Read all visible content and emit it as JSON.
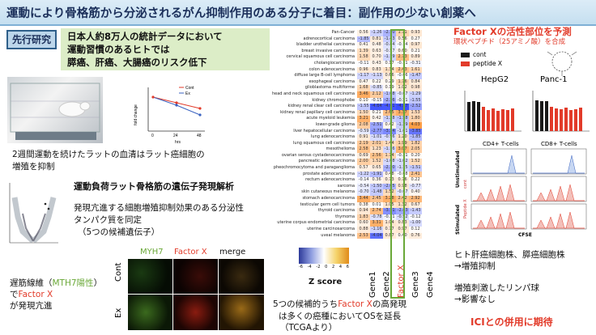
{
  "title": "運動により骨格筋から分泌されるがん抑制作用のある分子に着目：副作用の少ない創薬へ",
  "prior_label": "先行研究",
  "prior_lines": [
    "日本人約8万人の統計データにおいて",
    "運動習慣のあるヒトでは",
    "膵癌、肝癌、大腸癌のリスク低下"
  ],
  "plot": {
    "ylabel": "fold change",
    "legend": [
      "Cont",
      "Ex"
    ],
    "xticks": [
      "0",
      "24",
      "48"
    ],
    "xlabel": "hrs"
  },
  "rat_caption": [
    "2週間運動を続けたラットの血清はラット癌細胞の",
    "増殖を抑制"
  ],
  "analysis_title": "運動負荷ラット骨格筋の遺伝子発現解析",
  "analysis_lines": [
    "発現亢進する細胞増殖抑制効果のある分泌性",
    "タンパク質を同定",
    "（5つの候補遺伝子）"
  ],
  "muscle_caption": {
    "l1a": "遅筋線維（",
    "l1b": "MTH7陽性",
    "l1c": "）",
    "l2a": "で",
    "l2b": "Factor X",
    "l3": "が発現亢進"
  },
  "micro": {
    "cols": [
      "MYH7",
      "Factor X",
      "merge"
    ],
    "rows": [
      "Cont",
      "Ex"
    ]
  },
  "heatmap": {
    "rows": [
      {
        "name": "Pan-Cancer",
        "v": [
          "0.56",
          "-1.26",
          "-2.10",
          "1.71",
          "0.93"
        ]
      },
      {
        "name": "adrenocortical carcinoma",
        "v": [
          "-1.85",
          "0.81",
          "-1.43",
          "0.56",
          "0.27"
        ]
      },
      {
        "name": "bladder urothelial carcinoma",
        "v": [
          "0.41",
          "0.48",
          "-0.84",
          "-0.14",
          "0.97"
        ]
      },
      {
        "name": "breast invasive carcinoma",
        "v": [
          "1.39",
          "0.63",
          "-0.57",
          "0.60",
          "0.21"
        ]
      },
      {
        "name": "cervical squamous cell carcinoma",
        "v": [
          "1.58",
          "0.70",
          "-1.19",
          "2.73",
          "0.89"
        ]
      },
      {
        "name": "cholangiocarcinoma",
        "v": [
          "-0.11",
          "0.43",
          "0.17",
          "-0.11",
          "-0.31"
        ]
      },
      {
        "name": "colon adenocarcinoma",
        "v": [
          "0.96",
          "0.83",
          "1.34",
          "2.43",
          "1.61"
        ]
      },
      {
        "name": "diffuse large B-cell lymphoma",
        "v": [
          "-1.17",
          "-1.13",
          "0.66",
          "-0.06",
          "-1.47"
        ]
      },
      {
        "name": "esophageal carcinoma",
        "v": [
          "0.47",
          "0.22",
          "0.29",
          "1.76",
          "0.84"
        ]
      },
      {
        "name": "glioblastoma multiforme",
        "v": [
          "1.68",
          "-0.85",
          "0.19",
          "1.02",
          "0.98"
        ]
      },
      {
        "name": "head and neck squamous cell carcinoma",
        "v": [
          "3.46",
          "2.12",
          "-1.68",
          "-0.67",
          "-1.29"
        ]
      },
      {
        "name": "kidney chromophobe",
        "v": [
          "0.10",
          "-0.15",
          "-2.36",
          "-0.51",
          "-1.55"
        ]
      },
      {
        "name": "kidney renal clear cell carcinoma",
        "v": [
          "-1.55",
          "-4.64",
          "-4.61",
          "-4.87",
          "-2.52"
        ]
      },
      {
        "name": "kidney renal papillary cell carcinoma",
        "v": [
          "1.50",
          "0.21",
          "2.65",
          "3.37",
          "1.53"
        ]
      },
      {
        "name": "acute myeloid leukemia",
        "v": [
          "3.21",
          "0.42",
          "-1.28",
          "-1.58",
          "1.80"
        ]
      },
      {
        "name": "lower-grade glioma",
        "v": [
          "2.08",
          "-2.51",
          "0.42",
          "-1.39",
          "4.03"
        ]
      },
      {
        "name": "liver hepatocellular carcinoma",
        "v": [
          "-0.59",
          "-2.77",
          "-3.24",
          "-1.01",
          "-3.85"
        ]
      },
      {
        "name": "lung adenocarcinoma",
        "v": [
          "0.91",
          "-1.01",
          "-0.96",
          "1.20",
          "-1.85"
        ]
      },
      {
        "name": "lung squamous cell carcinoma",
        "v": [
          "2.19",
          "2.01",
          "1.44",
          "1.99",
          "1.82"
        ]
      },
      {
        "name": "mesothelioma",
        "v": [
          "2.58",
          "1.23",
          "-1.16",
          "3.07",
          "2.05"
        ]
      },
      {
        "name": "ovarian serous cystadenocarcinoma",
        "v": [
          "0.69",
          "2.56",
          "1.74",
          "-0.31",
          "0.20"
        ]
      },
      {
        "name": "pancreatic adenocarcinoma",
        "v": [
          "2.00",
          "1.52",
          "-1.08",
          "-1.02",
          "1.52"
        ]
      },
      {
        "name": "pheochromocytoma and paraganglioma",
        "v": [
          "0.57",
          "0.65",
          "-2.20",
          "-1.15",
          "-1.51"
        ]
      },
      {
        "name": "prostate adenocarcinoma",
        "v": [
          "-1.22",
          "-1.91",
          "0.48",
          "-0.08",
          "2.41"
        ]
      },
      {
        "name": "rectum adenocarcinoma",
        "v": [
          "-0.14",
          "0.36",
          "0.73",
          "0.76",
          "0.22"
        ]
      },
      {
        "name": "sarcoma",
        "v": [
          "-0.54",
          "-1.50",
          "-2.05",
          "0.98",
          "-0.77"
        ]
      },
      {
        "name": "skin cutaneous melanoma",
        "v": [
          "-0.70",
          "-1.48",
          "1.52",
          "-0.67",
          "0.40"
        ]
      },
      {
        "name": "stomach adenocarcinoma",
        "v": [
          "3.44",
          "2.45",
          "3.28",
          "2.42",
          "2.92"
        ]
      },
      {
        "name": "testicular germ cell tumors",
        "v": [
          "0.38",
          "0.01",
          "1.05",
          "1.32",
          "0.67"
        ]
      },
      {
        "name": "thyroid carcinoma",
        "v": [
          "0.94",
          "2.74",
          "-3.11",
          "-2.43",
          "-1.43"
        ]
      },
      {
        "name": "thymoma",
        "v": [
          "1.83",
          "-0.78",
          "-0.31",
          "-0.92",
          "-0.12"
        ]
      },
      {
        "name": "uterine corpus endometrial carcinoma",
        "v": [
          "0.60",
          "3.31",
          "1.04",
          "0.83",
          "-1.00"
        ]
      },
      {
        "name": "uterine carcinosarcoma",
        "v": [
          "0.88",
          "-1.16",
          "0.77",
          "0.97",
          "0.12"
        ]
      },
      {
        "name": "uveal melanoma",
        "v": [
          "2.53",
          "-4.04",
          "0.87",
          "0.40",
          "0.76"
        ]
      }
    ],
    "genes": [
      "Gene1",
      "Gene2",
      "Factor X",
      "Gene3",
      "Gene4"
    ],
    "scale_ticks": [
      "-6",
      "-4",
      "-2",
      "0",
      "2",
      "4",
      "6"
    ],
    "scale_label": "Z score"
  },
  "heat_caption": {
    "a": "5つの候補的うち",
    "b": "Factor X",
    "c": "の高発現",
    "l2": "は多くの癌種においてOSを延長",
    "l3": "（TCGAより）"
  },
  "right": {
    "head": "Factor Xの活性部位を予測",
    "sub": "環状ペプチド（25アミノ酸）を合成",
    "legend": [
      "cont",
      "peptide X"
    ],
    "cell_lines": [
      "HepG2",
      "Panc-1"
    ],
    "tcell_heads": [
      "CD4+ T-cells",
      "CD8+ T-cells"
    ],
    "tcell_rows": [
      "Unstimulated",
      "Stimulated"
    ],
    "tcell_sub": [
      "cont",
      "Peptide X"
    ],
    "cfse": "CFSE",
    "result1": [
      "ヒト肝癌細胞株、膵癌細胞株",
      "→増殖抑制"
    ],
    "result2": [
      "増殖刺激したリンパ球",
      "→影響なし"
    ],
    "conclusion": "ICIとの併用に期待"
  },
  "colors": {
    "accent_red": "#e23b2a",
    "green": "#6aa838",
    "navy": "#1b2f5a",
    "highlight": "#e0c23a"
  }
}
